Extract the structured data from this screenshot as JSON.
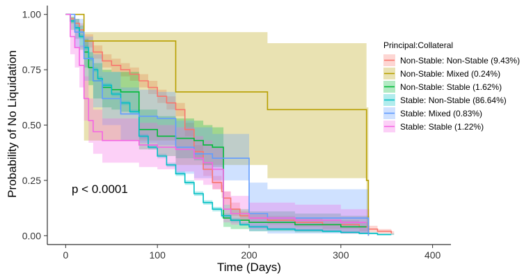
{
  "chart_data": {
    "type": "line",
    "xlabel": "Time (Days)",
    "ylabel": "Probability of No Liquidation",
    "xlim": [
      -20,
      420
    ],
    "ylim": [
      -0.04,
      1.04
    ],
    "x_ticks": [
      0,
      100,
      200,
      300,
      400
    ],
    "x_tick_labels": [
      "0",
      "100",
      "200",
      "300",
      "400"
    ],
    "y_ticks": [
      0,
      0.25,
      0.5,
      0.75,
      1.0
    ],
    "y_tick_labels": [
      "0.00",
      "0.25",
      "0.50",
      "0.75",
      "1.00"
    ],
    "grid": false,
    "legend": {
      "title": "Principal:Collateral",
      "position": "right"
    },
    "annotation": "p < 0.0001",
    "series": [
      {
        "name": "Non-Stable: Non-Stable (9.43%)",
        "color": "#F8766D",
        "x": [
          0,
          5,
          10,
          15,
          20,
          30,
          40,
          50,
          60,
          70,
          80,
          90,
          100,
          110,
          120,
          130,
          140,
          150,
          160,
          170,
          172,
          180,
          190,
          200,
          220,
          250,
          280,
          300,
          320,
          330,
          340,
          355
        ],
        "y": [
          1.0,
          0.98,
          0.96,
          0.93,
          0.88,
          0.83,
          0.79,
          0.77,
          0.75,
          0.73,
          0.7,
          0.67,
          0.63,
          0.6,
          0.57,
          0.48,
          0.38,
          0.3,
          0.24,
          0.2,
          0.17,
          0.12,
          0.09,
          0.08,
          0.07,
          0.06,
          0.05,
          0.05,
          0.04,
          0.03,
          0.02,
          0.01
        ],
        "lower": [
          1.0,
          0.96,
          0.94,
          0.9,
          0.85,
          0.8,
          0.76,
          0.74,
          0.72,
          0.7,
          0.67,
          0.64,
          0.6,
          0.57,
          0.54,
          0.45,
          0.35,
          0.27,
          0.21,
          0.17,
          0.14,
          0.09,
          0.07,
          0.06,
          0.05,
          0.04,
          0.03,
          0.03,
          0.02,
          0.015,
          0.01,
          0.005
        ],
        "upper": [
          1.0,
          0.99,
          0.98,
          0.96,
          0.91,
          0.86,
          0.82,
          0.8,
          0.78,
          0.76,
          0.73,
          0.7,
          0.66,
          0.63,
          0.6,
          0.51,
          0.41,
          0.33,
          0.27,
          0.23,
          0.2,
          0.15,
          0.11,
          0.1,
          0.09,
          0.08,
          0.07,
          0.07,
          0.06,
          0.045,
          0.03,
          0.02
        ]
      },
      {
        "name": "Non-Stable: Mixed (0.24%)",
        "color": "#B79F00",
        "x": [
          0,
          20,
          120,
          220,
          328,
          330
        ],
        "y": [
          1.0,
          0.88,
          0.65,
          0.57,
          0.25,
          0.0
        ],
        "lower": [
          1.0,
          0.43,
          0.32,
          0.26,
          0.04,
          0.0
        ],
        "upper": [
          1.0,
          0.92,
          0.92,
          0.87,
          0.58,
          0.0
        ]
      },
      {
        "name": "Non-Stable: Stable (1.62%)",
        "color": "#00BA38",
        "x": [
          0,
          5,
          10,
          15,
          20,
          25,
          30,
          40,
          50,
          60,
          80,
          100,
          120,
          140,
          150,
          160,
          172,
          180,
          200,
          250,
          300,
          328
        ],
        "y": [
          1.0,
          0.97,
          0.94,
          0.9,
          0.83,
          0.76,
          0.7,
          0.67,
          0.66,
          0.65,
          0.48,
          0.45,
          0.44,
          0.43,
          0.41,
          0.4,
          0.08,
          0.07,
          0.06,
          0.05,
          0.04,
          0.04
        ],
        "lower": [
          1.0,
          0.93,
          0.89,
          0.84,
          0.76,
          0.68,
          0.62,
          0.58,
          0.57,
          0.56,
          0.39,
          0.36,
          0.35,
          0.34,
          0.32,
          0.31,
          0.04,
          0.03,
          0.02,
          0.015,
          0.01,
          0.01
        ],
        "upper": [
          1.0,
          0.99,
          0.98,
          0.95,
          0.89,
          0.83,
          0.78,
          0.75,
          0.74,
          0.74,
          0.57,
          0.54,
          0.53,
          0.52,
          0.5,
          0.49,
          0.14,
          0.12,
          0.11,
          0.1,
          0.09,
          0.09
        ]
      },
      {
        "name": "Stable: Non-Stable (86.64%)",
        "color": "#00BFC4",
        "x": [
          0,
          5,
          10,
          15,
          20,
          25,
          30,
          35,
          40,
          50,
          60,
          70,
          80,
          90,
          100,
          110,
          120,
          130,
          140,
          150,
          160,
          170,
          180,
          190,
          200,
          220,
          250,
          280,
          300,
          320,
          330,
          340,
          355
        ],
        "y": [
          1.0,
          0.97,
          0.94,
          0.9,
          0.85,
          0.8,
          0.75,
          0.71,
          0.68,
          0.64,
          0.6,
          0.56,
          0.45,
          0.4,
          0.36,
          0.32,
          0.28,
          0.24,
          0.19,
          0.15,
          0.12,
          0.09,
          0.07,
          0.05,
          0.04,
          0.03,
          0.025,
          0.02,
          0.015,
          0.01,
          0.01,
          0.005,
          0.005
        ],
        "lower": [
          1.0,
          0.96,
          0.93,
          0.89,
          0.84,
          0.79,
          0.74,
          0.7,
          0.67,
          0.63,
          0.59,
          0.55,
          0.44,
          0.39,
          0.35,
          0.31,
          0.27,
          0.23,
          0.18,
          0.14,
          0.11,
          0.08,
          0.06,
          0.045,
          0.035,
          0.025,
          0.02,
          0.015,
          0.01,
          0.007,
          0.007,
          0.003,
          0.003
        ],
        "upper": [
          1.0,
          0.98,
          0.95,
          0.91,
          0.86,
          0.81,
          0.76,
          0.72,
          0.69,
          0.65,
          0.61,
          0.57,
          0.46,
          0.41,
          0.37,
          0.33,
          0.29,
          0.25,
          0.2,
          0.16,
          0.13,
          0.1,
          0.08,
          0.06,
          0.05,
          0.035,
          0.03,
          0.025,
          0.02,
          0.015,
          0.015,
          0.01,
          0.01
        ]
      },
      {
        "name": "Stable: Mixed (0.83%)",
        "color": "#619CFF",
        "x": [
          0,
          10,
          20,
          30,
          40,
          60,
          80,
          100,
          120,
          140,
          160,
          172,
          200,
          220,
          250,
          300,
          328,
          330
        ],
        "y": [
          1.0,
          0.92,
          0.8,
          0.7,
          0.62,
          0.55,
          0.54,
          0.53,
          0.4,
          0.37,
          0.35,
          0.35,
          0.1,
          0.08,
          0.08,
          0.08,
          0.08,
          0.0
        ],
        "lower": [
          1.0,
          0.85,
          0.7,
          0.58,
          0.5,
          0.43,
          0.42,
          0.41,
          0.28,
          0.26,
          0.25,
          0.25,
          0.02,
          0.01,
          0.01,
          0.01,
          0.01,
          0.0
        ],
        "upper": [
          1.0,
          0.98,
          0.9,
          0.82,
          0.74,
          0.67,
          0.66,
          0.65,
          0.52,
          0.49,
          0.46,
          0.46,
          0.24,
          0.21,
          0.21,
          0.21,
          0.21,
          0.0
        ]
      },
      {
        "name": "Stable: Stable (1.22%)",
        "color": "#F564E3",
        "x": [
          0,
          5,
          10,
          15,
          20,
          25,
          30,
          40,
          60,
          80,
          100,
          110,
          120,
          140,
          150,
          160,
          172,
          180,
          200,
          250,
          300,
          328
        ],
        "y": [
          1.0,
          0.9,
          0.85,
          0.77,
          0.62,
          0.52,
          0.47,
          0.43,
          0.43,
          0.41,
          0.4,
          0.4,
          0.39,
          0.35,
          0.33,
          0.3,
          0.12,
          0.1,
          0.08,
          0.07,
          0.06,
          0.06
        ],
        "lower": [
          1.0,
          0.82,
          0.76,
          0.67,
          0.52,
          0.42,
          0.37,
          0.33,
          0.33,
          0.31,
          0.3,
          0.3,
          0.29,
          0.25,
          0.23,
          0.21,
          0.06,
          0.05,
          0.03,
          0.02,
          0.01,
          0.01
        ],
        "upper": [
          1.0,
          0.96,
          0.93,
          0.86,
          0.72,
          0.62,
          0.57,
          0.53,
          0.53,
          0.51,
          0.5,
          0.5,
          0.49,
          0.45,
          0.43,
          0.4,
          0.2,
          0.18,
          0.15,
          0.14,
          0.12,
          0.12
        ]
      }
    ]
  }
}
